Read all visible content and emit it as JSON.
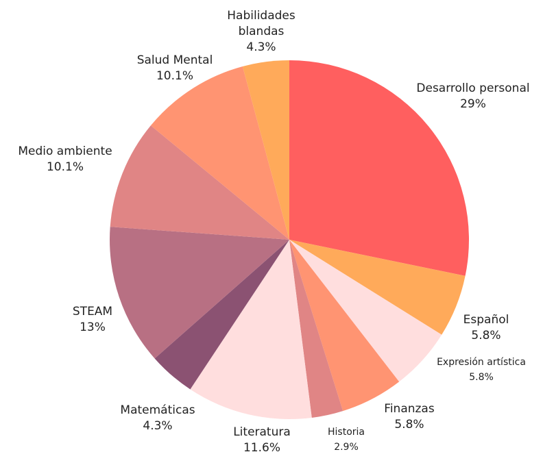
{
  "chart_data": {
    "type": "pie",
    "categories": [
      "Desarrollo personal",
      "Español",
      "Expresión artística",
      "Finanzas",
      "Historia",
      "Literatura",
      "Matemáticas",
      "STEAM",
      "Medio ambiente",
      "Salud Mental",
      "Habilidades blandas"
    ],
    "values": [
      29,
      5.8,
      5.8,
      5.8,
      2.9,
      11.6,
      4.3,
      13,
      10.1,
      10.1,
      4.3
    ],
    "value_labels": [
      "29%",
      "5.8%",
      "5.8%",
      "5.8%",
      "2.9%",
      "11.6%",
      "4.3%",
      "13%",
      "10.1%",
      "10.1%",
      "4.3%"
    ],
    "colors": [
      "#ff5f5f",
      "#ffaa5a",
      "#ffdede",
      "#ff9472",
      "#e08585",
      "#ffdede",
      "#8b5272",
      "#b87083",
      "#e08585",
      "#ff9472",
      "#ffaa5a"
    ]
  }
}
